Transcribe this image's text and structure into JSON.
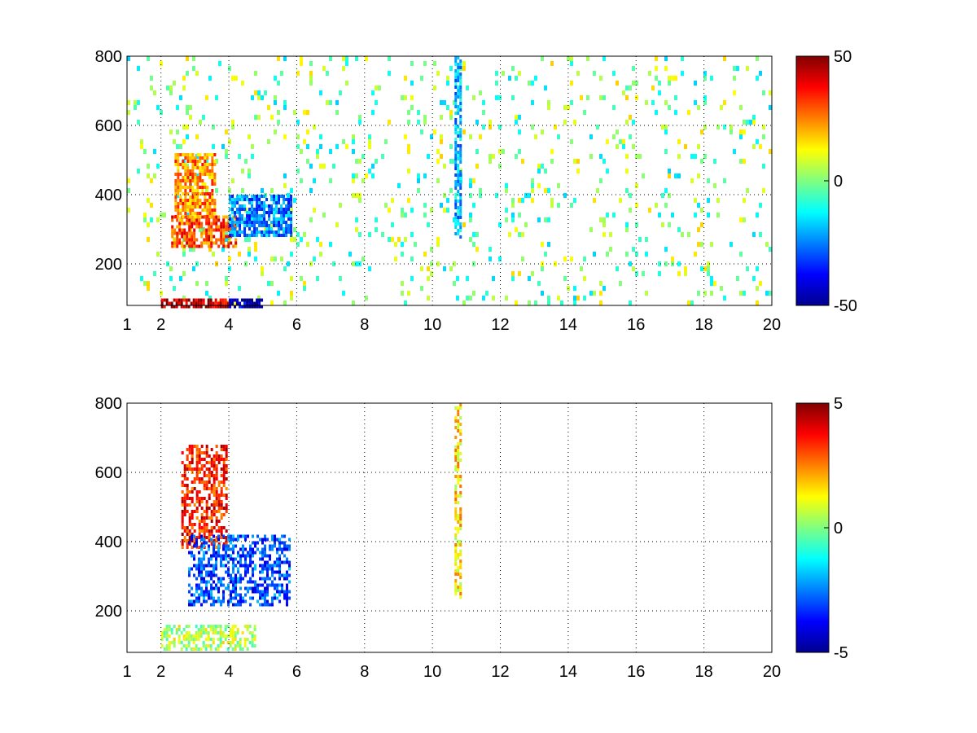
{
  "chart_data": [
    {
      "type": "heatmap",
      "panel": "top",
      "xlim": [
        1,
        20
      ],
      "ylim": [
        80,
        800
      ],
      "x_ticks": [
        1,
        2,
        4,
        6,
        8,
        10,
        12,
        14,
        16,
        18,
        20
      ],
      "y_ticks": [
        200,
        400,
        600,
        800
      ],
      "grid": true,
      "colorbar": {
        "min": -50,
        "max": 50,
        "ticks": [
          50,
          0,
          -50
        ],
        "colormap": "jet"
      },
      "regions": [
        {
          "desc": "warm band",
          "x": [
            2.3,
            4.2
          ],
          "y": [
            250,
            340
          ],
          "value": 30
        },
        {
          "desc": "warm ridge",
          "x": [
            2.4,
            3.6
          ],
          "y": [
            340,
            520
          ],
          "value": 25
        },
        {
          "desc": "cold band",
          "x": [
            4.0,
            5.8
          ],
          "y": [
            280,
            400
          ],
          "value": -25
        },
        {
          "desc": "bottom warm strip",
          "x": [
            2.0,
            4.0
          ],
          "y": [
            80,
            100
          ],
          "value": 45
        },
        {
          "desc": "bottom cold strip",
          "x": [
            4.0,
            5.0
          ],
          "y": [
            80,
            100
          ],
          "value": -45
        },
        {
          "desc": "cold column",
          "x": [
            10.65,
            10.8
          ],
          "y": [
            280,
            800
          ],
          "value": -20
        }
      ]
    },
    {
      "type": "heatmap",
      "panel": "bottom",
      "xlim": [
        1,
        20
      ],
      "ylim": [
        80,
        800
      ],
      "x_ticks": [
        1,
        2,
        4,
        6,
        8,
        10,
        12,
        14,
        16,
        18,
        20
      ],
      "y_ticks": [
        200,
        400,
        600,
        800
      ],
      "grid": true,
      "colorbar": {
        "min": -5,
        "max": 5,
        "ticks": [
          5,
          0,
          -5
        ],
        "colormap": "jet"
      },
      "regions": [
        {
          "desc": "warm cluster",
          "x": [
            2.6,
            3.9
          ],
          "y": [
            380,
            680
          ],
          "value": 3.5
        },
        {
          "desc": "cold cluster",
          "x": [
            2.8,
            5.8
          ],
          "y": [
            220,
            420
          ],
          "value": -3
        },
        {
          "desc": "bottom strip",
          "x": [
            2.0,
            4.8
          ],
          "y": [
            90,
            160
          ],
          "value": 0.5
        },
        {
          "desc": "column",
          "x": [
            10.65,
            10.8
          ],
          "y": [
            240,
            800
          ],
          "value": 1.5
        }
      ]
    }
  ]
}
